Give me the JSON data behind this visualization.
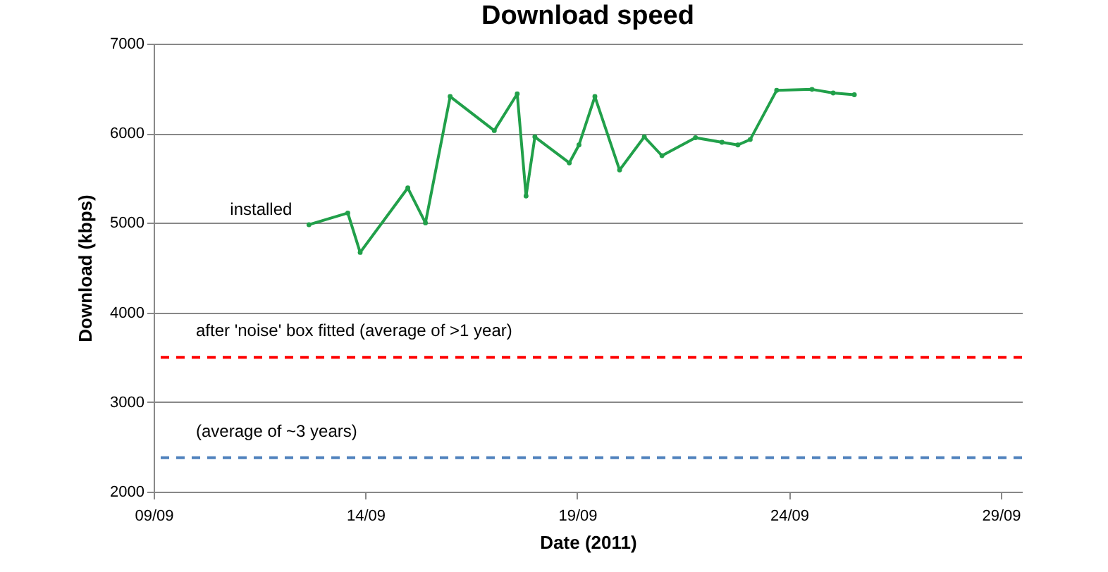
{
  "chart_data": {
    "type": "line",
    "title": "Download speed",
    "xlabel": "Date (2011)",
    "ylabel": "Download (kbps)",
    "x": [
      "2011-09-12T16:00",
      "2011-09-13T14:00",
      "2011-09-13T21:00",
      "2011-09-15T00:00",
      "2011-09-15T10:00",
      "2011-09-16T00:00",
      "2011-09-17T01:00",
      "2011-09-17T14:00",
      "2011-09-17T19:00",
      "2011-09-18T00:00",
      "2011-09-18T19:30",
      "2011-09-19T01:00",
      "2011-09-19T10:00",
      "2011-09-20T00:00",
      "2011-09-20T14:00",
      "2011-09-21T00:00",
      "2011-09-21T19:00",
      "2011-09-22T10:00",
      "2011-09-22T19:00",
      "2011-09-23T02:00",
      "2011-09-23T17:00",
      "2011-09-24T13:00",
      "2011-09-25T01:00",
      "2011-09-25T13:00"
    ],
    "series": [
      {
        "color": "#21a04a",
        "values": [
          4980,
          5110,
          4670,
          5390,
          5000,
          6410,
          6030,
          6440,
          5300,
          5960,
          5670,
          5870,
          6410,
          5590,
          5960,
          5750,
          5950,
          5900,
          5870,
          5930,
          6480,
          6490,
          6450,
          6430
        ]
      }
    ],
    "xlim": [
      "2011-09-09",
      "2011-09-29T12:00"
    ],
    "xticks": [
      {
        "value": "2011-09-09",
        "label": "09/09"
      },
      {
        "value": "2011-09-14",
        "label": "14/09"
      },
      {
        "value": "2011-09-19",
        "label": "19/09"
      },
      {
        "value": "2011-09-24",
        "label": "24/09"
      },
      {
        "value": "2011-09-29",
        "label": "29/09"
      }
    ],
    "ylim": [
      2000,
      7000
    ],
    "yticks": [
      2000,
      3000,
      4000,
      5000,
      6000,
      7000
    ],
    "grid": "y",
    "marker": "circle",
    "line_style": "solid",
    "ref_lines": [
      {
        "axis": "y",
        "value": 3500,
        "label": "after 'noise' box fitted (average of >1 year)",
        "color": "#ff0000",
        "line_style": "dashed"
      },
      {
        "axis": "y",
        "value": 2380,
        "label": "(average of ~3 years)",
        "color": "#4f81bd",
        "line_style": "dashed"
      }
    ],
    "annotations": [
      {
        "text": "installed",
        "x": "2011-09-12T16:00",
        "y": 4980
      }
    ]
  }
}
